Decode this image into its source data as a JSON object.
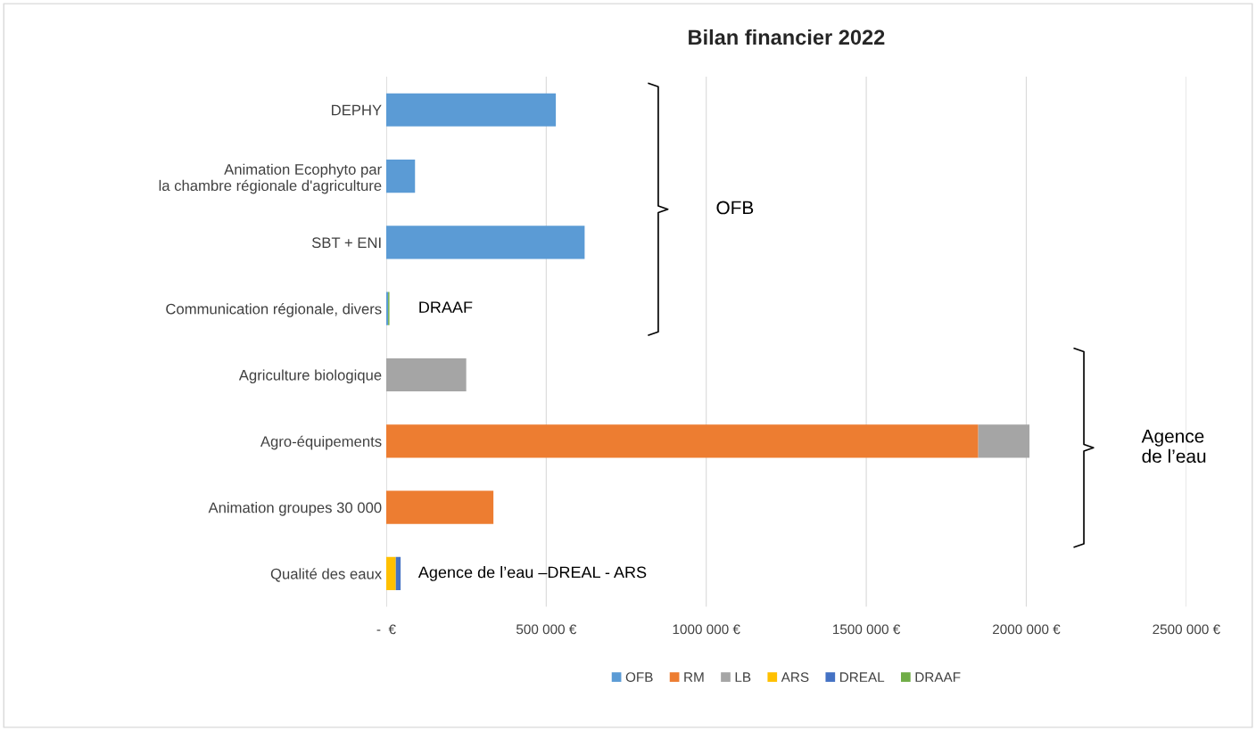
{
  "chart_data": {
    "type": "bar",
    "orientation": "horizontal",
    "stacked": true,
    "title": "Bilan financier 2022",
    "categories": [
      "DEPHY",
      "Animation Ecophyto par\nla chambre régionale d'agriculture",
      "SBT + ENI",
      "Communication régionale, divers",
      "Agriculture biologique",
      "Agro-équipements",
      "Animation groupes 30 000",
      "Qualité des eaux"
    ],
    "series": [
      {
        "name": "OFB",
        "color": "#5b9bd5",
        "values": [
          530000,
          90000,
          620000,
          6000,
          null,
          null,
          null,
          null
        ]
      },
      {
        "name": "RM",
        "color": "#ed7d31",
        "values": [
          null,
          null,
          null,
          null,
          null,
          1850000,
          335000,
          null
        ]
      },
      {
        "name": "LB",
        "color": "#a5a5a5",
        "values": [
          null,
          null,
          null,
          null,
          250000,
          160000,
          null,
          null
        ]
      },
      {
        "name": "ARS",
        "color": "#ffc000",
        "values": [
          null,
          null,
          null,
          null,
          null,
          null,
          null,
          30000
        ]
      },
      {
        "name": "DREAL",
        "color": "#4472c4",
        "values": [
          null,
          null,
          null,
          null,
          null,
          null,
          null,
          15000
        ]
      },
      {
        "name": "DRAAF",
        "color": "#70ad47",
        "values": [
          null,
          null,
          null,
          4000,
          null,
          null,
          null,
          null
        ]
      }
    ],
    "xlim": [
      0,
      2500000
    ],
    "xticks": [
      {
        "value": 0,
        "label": "-  €"
      },
      {
        "value": 500000,
        "label": "500 000 €"
      },
      {
        "value": 1000000,
        "label": "1000 000 €"
      },
      {
        "value": 1500000,
        "label": "1500 000 €"
      },
      {
        "value": 2000000,
        "label": "2000 000 €"
      },
      {
        "value": 2500000,
        "label": "2500 000 €"
      }
    ],
    "grid": "x",
    "legend": "bottom",
    "annotations": [
      "OFB",
      "Agence\nde l’eau",
      "DRAAF",
      "Agence de l’eau –DREAL - ARS"
    ]
  }
}
